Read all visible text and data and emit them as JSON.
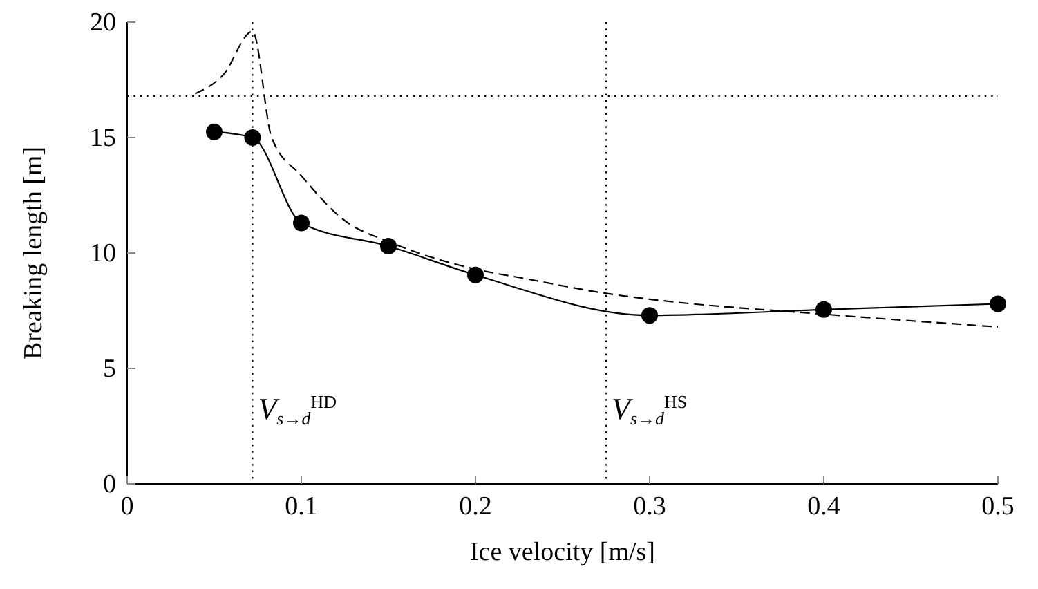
{
  "chart_data": {
    "type": "line",
    "xlabel": "Ice velocity [m/s]",
    "ylabel": "Breaking length [m]",
    "xlim": [
      0,
      0.5
    ],
    "ylim": [
      0,
      20
    ],
    "xticks": [
      0,
      0.1,
      0.2,
      0.3,
      0.4,
      0.5
    ],
    "yticks": [
      0,
      5,
      10,
      15,
      20
    ],
    "grid": false,
    "series": [
      {
        "color": "#000000",
        "marker": "circle",
        "line_style": "solid",
        "x": [
          0.05,
          0.072,
          0.1,
          0.15,
          0.2,
          0.3,
          0.4,
          0.5
        ],
        "values": [
          15.25,
          15.0,
          11.3,
          10.3,
          9.05,
          7.3,
          7.55,
          7.8
        ]
      },
      {
        "color": "#000000",
        "marker": "none",
        "line_style": "dashed",
        "x": [
          0.039,
          0.055,
          0.072,
          0.083,
          0.1,
          0.125,
          0.15,
          0.2,
          0.228,
          0.275,
          0.3,
          0.4,
          0.5
        ],
        "values": [
          16.9,
          17.7,
          19.6,
          15.0,
          13.35,
          11.4,
          10.5,
          9.3,
          8.9,
          8.25,
          8.0,
          7.35,
          6.8
        ]
      }
    ],
    "ref_lines": [
      {
        "axis": "y",
        "value": 16.8,
        "line_style": "dotted",
        "color": "#000000"
      },
      {
        "axis": "x",
        "value": 0.072,
        "label": "V$_{s→d}$$^{HD}$",
        "line_style": "dotted",
        "color": "#000000"
      },
      {
        "axis": "x",
        "value": 0.275,
        "label": "V$_{s→d}$$^{HS}$",
        "line_style": "dotted",
        "color": "#000000"
      }
    ]
  }
}
